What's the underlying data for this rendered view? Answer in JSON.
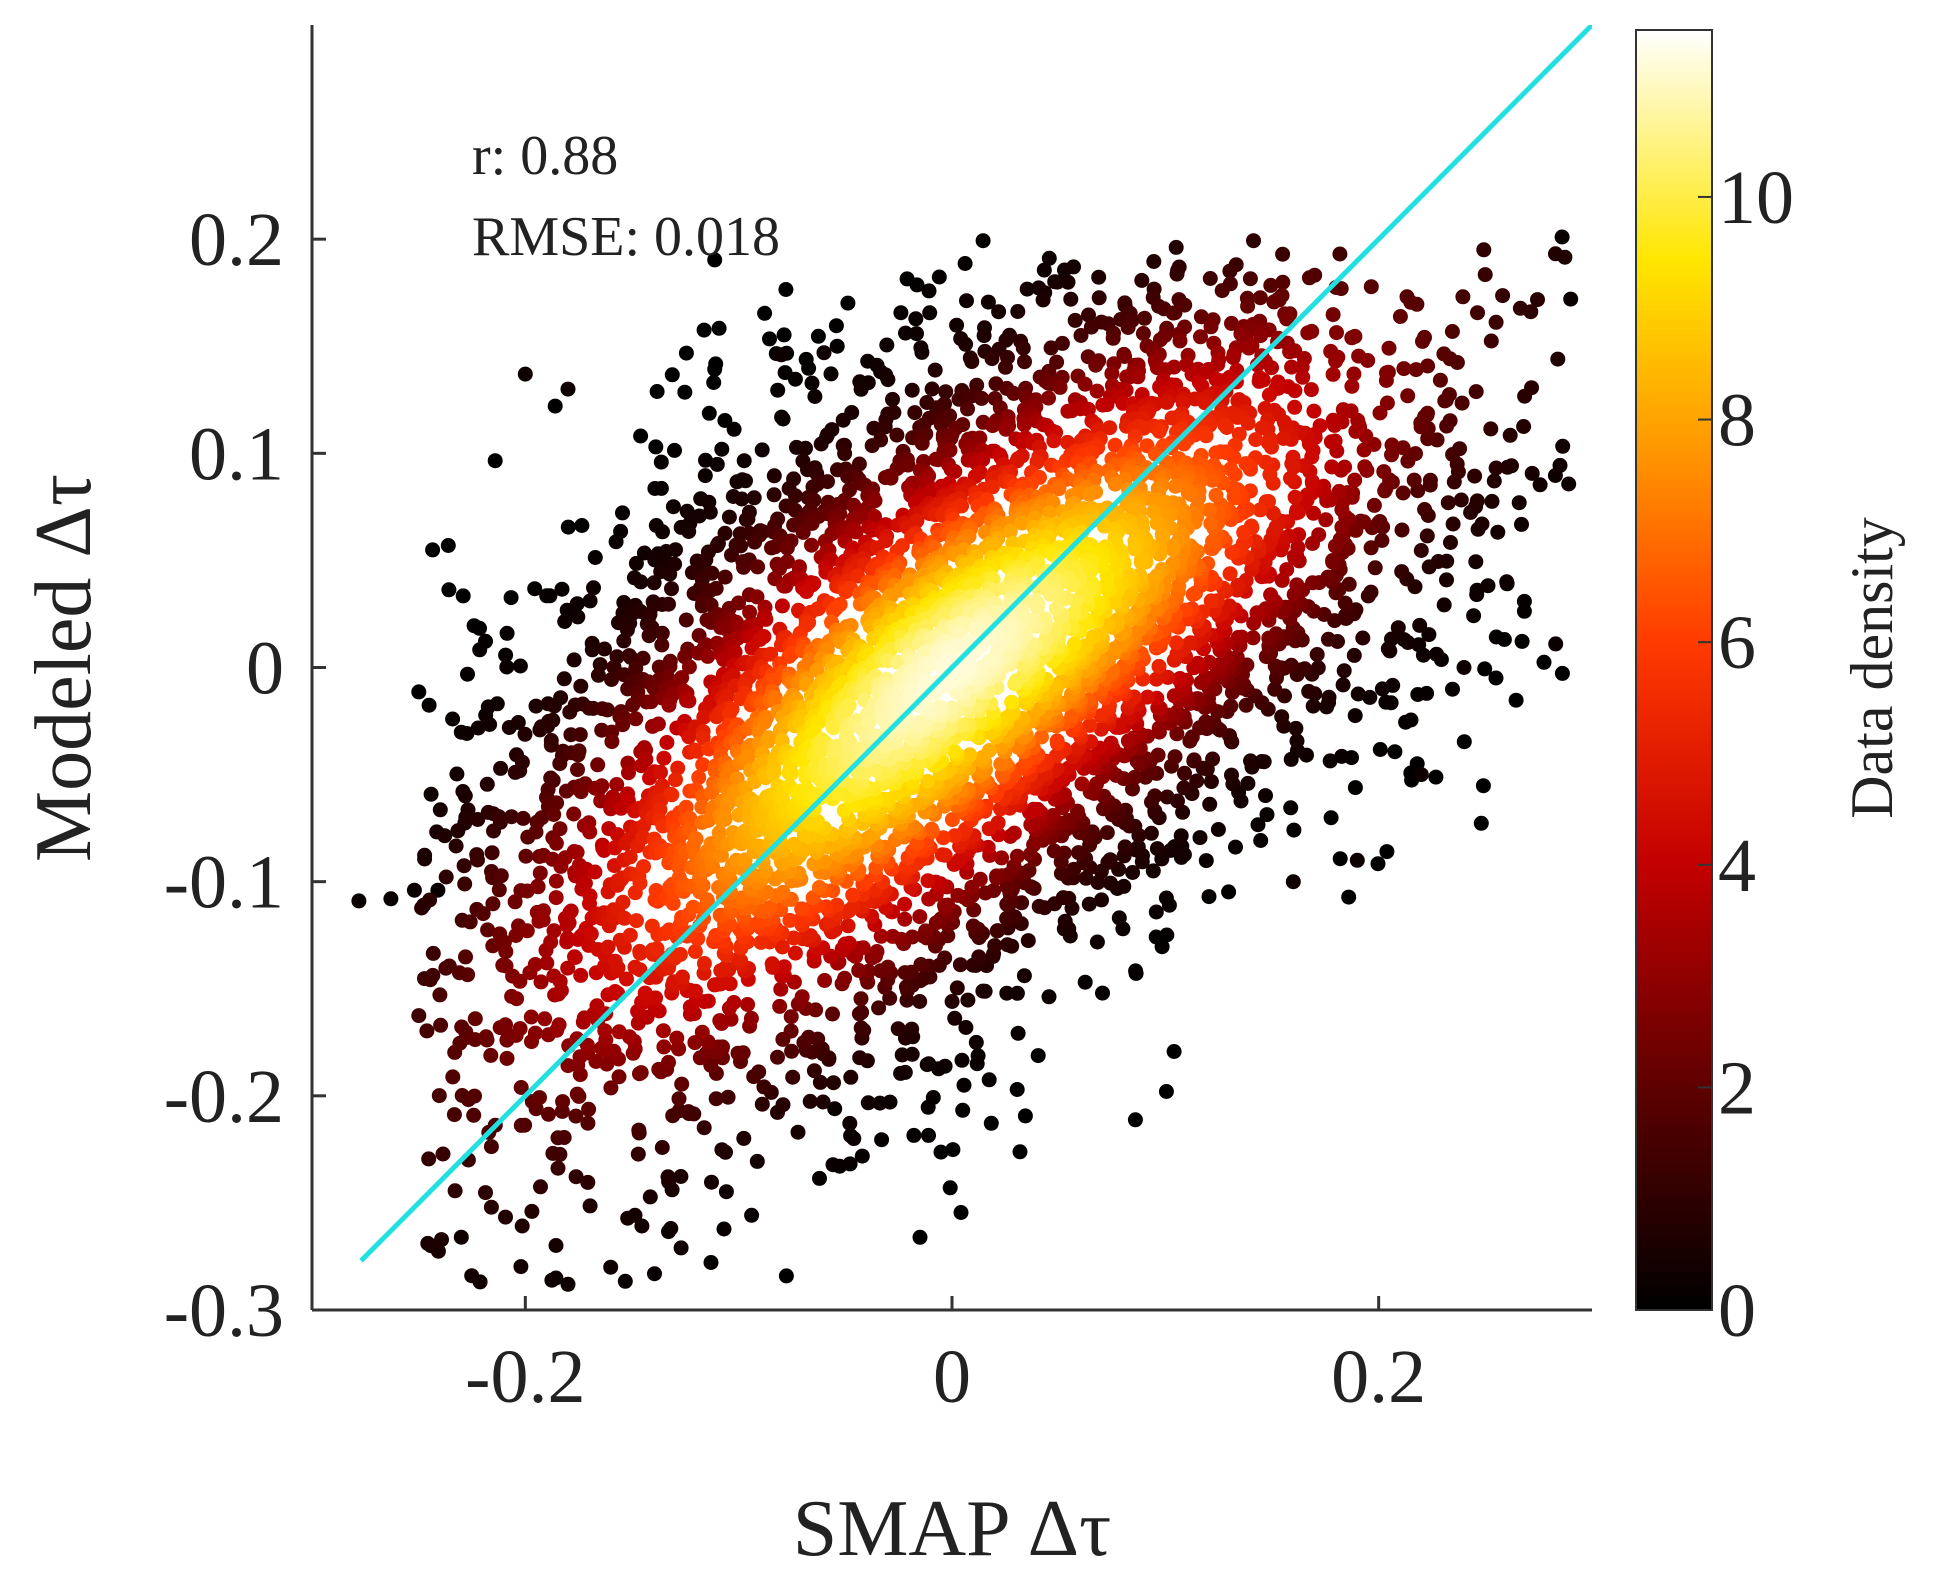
{
  "chart_data": {
    "type": "scatter",
    "subtype": "density-scatter",
    "xlabel": "SMAP Δτ",
    "ylabel": "Modeled Δτ",
    "xlim": [
      -0.3,
      0.3
    ],
    "ylim": [
      -0.3,
      0.3
    ],
    "xticks": [
      -0.2,
      0,
      0.2
    ],
    "xtick_labels": [
      "-0.2",
      "0",
      "0.2"
    ],
    "yticks": [
      -0.3,
      -0.2,
      -0.1,
      0,
      0.1,
      0.2
    ],
    "ytick_labels": [
      "-0.3",
      "-0.2",
      "-0.1",
      "0",
      "0.1",
      "0.2"
    ],
    "grid": false,
    "annotations": [
      "r: 0.88",
      "RMSE: 0.018"
    ],
    "reference_line": {
      "x": [
        -0.277,
        0.3
      ],
      "y": [
        -0.277,
        0.3
      ],
      "color": "#22e0e0"
    },
    "colorbar": {
      "label": "Data density",
      "range": [
        0,
        11.5
      ],
      "ticks": [
        0,
        2,
        4,
        6,
        8,
        10
      ],
      "tick_labels": [
        "0",
        "2",
        "4",
        "6",
        "8",
        "10"
      ],
      "colormap": "hot"
    },
    "density_core": {
      "center": [
        0.0,
        0.0
      ],
      "major_axis_slope": 1.0,
      "peak_density": 11.2
    },
    "outliers": [
      {
        "x": -0.278,
        "y": -0.109,
        "density": 0.2
      },
      {
        "x": -0.263,
        "y": -0.108,
        "density": 0.2
      },
      {
        "x": -0.252,
        "y": -0.104,
        "density": 0.2
      },
      {
        "x": -0.241,
        "y": -0.104,
        "density": 0.2
      },
      {
        "x": -0.055,
        "y": -0.206,
        "density": 0.2
      },
      {
        "x": 0.283,
        "y": 0.011,
        "density": 0.2
      },
      {
        "x": 0.286,
        "y": 0.201,
        "density": 0.2
      },
      {
        "x": 0.29,
        "y": 0.172,
        "density": 0.2
      },
      {
        "x": -0.23,
        "y": -0.266,
        "density": 0.3
      },
      {
        "x": -0.18,
        "y": -0.288,
        "density": 0.3
      },
      {
        "x": -0.16,
        "y": -0.28,
        "density": 0.3
      },
      {
        "x": -0.127,
        "y": -0.271,
        "density": 0.3
      },
      {
        "x": -0.115,
        "y": -0.18,
        "density": 0.3
      },
      {
        "x": -0.2,
        "y": 0.137,
        "density": 0.3
      },
      {
        "x": -0.18,
        "y": 0.13,
        "density": 0.3
      },
      {
        "x": -0.06,
        "y": 0.147,
        "density": 0.3
      },
      {
        "x": -0.08,
        "y": 0.146,
        "density": 0.3
      },
      {
        "x": 0.16,
        "y": -0.1,
        "density": 0.3
      },
      {
        "x": 0.19,
        "y": -0.09,
        "density": 0.3
      },
      {
        "x": 0.22,
        "y": -0.05,
        "density": 0.3
      },
      {
        "x": 0.24,
        "y": 0.0,
        "density": 0.3
      },
      {
        "x": 0.26,
        "y": 0.04,
        "density": 0.3
      }
    ]
  },
  "colors": {
    "reference_line": "#22e0e0",
    "axis": "#333333",
    "colormap_stops": [
      "#000000",
      "#5c0000",
      "#c40000",
      "#ff3a00",
      "#ff9600",
      "#ffe600",
      "#ffffff"
    ]
  }
}
